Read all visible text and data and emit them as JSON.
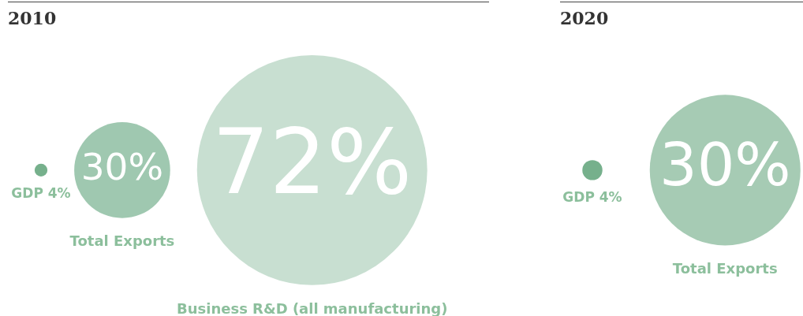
{
  "chart_data": [
    {
      "type": "other",
      "title": "2010",
      "categories": [
        "GDP",
        "Total Exports",
        "Business R&D (all manufacturing)"
      ],
      "values": [
        4,
        30,
        72
      ],
      "value_labels": [
        "4%",
        "30%",
        "72%"
      ],
      "colors": [
        "#76b08c",
        "#9fc8b0",
        "#c8dfd1"
      ]
    },
    {
      "type": "other",
      "title": "2020",
      "categories": [
        "GDP",
        "Total Exports"
      ],
      "values": [
        4,
        30
      ],
      "value_labels": [
        "4%",
        "30%"
      ],
      "colors": [
        "#76b08c",
        "#a6cbb4"
      ]
    }
  ]
}
